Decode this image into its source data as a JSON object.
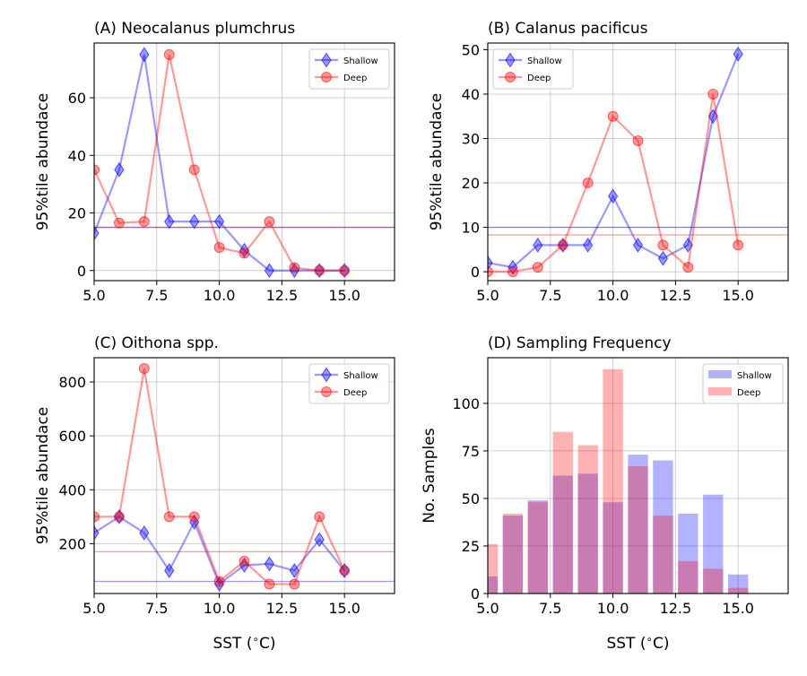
{
  "colors": {
    "shallow": "#0000ff",
    "deep": "#ff0000",
    "grid": "#b0b0b0"
  },
  "chart_data": [
    {
      "type": "line",
      "title": "(A) Neocalanus plumchrus",
      "xlabel": "",
      "ylabel": "95%tile abundace",
      "xlim": [
        5,
        17
      ],
      "ylim": [
        -3.5,
        79
      ],
      "x_ticks": [
        "5.0",
        "7.5",
        "10.0",
        "12.5",
        "15.0"
      ],
      "y_ticks": [
        "0",
        "20",
        "40",
        "60"
      ],
      "y_tick_values": [
        0,
        20,
        40,
        60
      ],
      "legend_position": "upper right",
      "grid": true,
      "series": [
        {
          "name": "Shallow",
          "x": [
            5,
            6,
            7,
            8,
            9,
            10,
            11,
            12,
            13,
            14,
            15
          ],
          "y": [
            13,
            35,
            75,
            17,
            17,
            17,
            7,
            0,
            0,
            0,
            0
          ],
          "hline": 15
        },
        {
          "name": "Deep",
          "x": [
            5,
            6,
            7,
            8,
            9,
            10,
            11,
            12,
            13,
            14,
            15
          ],
          "y": [
            35,
            16.5,
            17,
            75,
            35,
            8,
            6,
            17,
            1,
            0,
            0
          ],
          "hline": 15
        }
      ]
    },
    {
      "type": "line",
      "title": "(B) Calanus pacificus",
      "xlabel": "",
      "ylabel": "95%tile abundace",
      "xlim": [
        5,
        17
      ],
      "ylim": [
        -2,
        51.5
      ],
      "x_ticks": [
        "5.0",
        "7.5",
        "10.0",
        "12.5",
        "15.0"
      ],
      "y_ticks": [
        "0",
        "10",
        "20",
        "30",
        "40",
        "50"
      ],
      "y_tick_values": [
        0,
        10,
        20,
        30,
        40,
        50
      ],
      "legend_position": "upper left",
      "grid": true,
      "series": [
        {
          "name": "Shallow",
          "x": [
            5,
            6,
            7,
            8,
            9,
            10,
            11,
            12,
            13,
            14,
            15
          ],
          "y": [
            2,
            1,
            6,
            6,
            6,
            17,
            6,
            3,
            6,
            35,
            49
          ],
          "hline": 10
        },
        {
          "name": "Deep",
          "x": [
            5,
            6,
            7,
            8,
            9,
            10,
            11,
            12,
            13,
            14,
            15
          ],
          "y": [
            0,
            0,
            1,
            6,
            20,
            35,
            29.5,
            6,
            1,
            40,
            6
          ],
          "hline": 8.3
        }
      ]
    },
    {
      "type": "line",
      "title": "(C) Oithona spp.",
      "xlabel": "SST ($^\\circ$C)",
      "ylabel": "95%tile abundace",
      "xlim": [
        5,
        17
      ],
      "ylim": [
        15,
        890
      ],
      "x_ticks": [
        "5.0",
        "7.5",
        "10.0",
        "12.5",
        "15.0"
      ],
      "y_ticks": [
        "200",
        "400",
        "600",
        "800"
      ],
      "y_tick_values": [
        200,
        400,
        600,
        800
      ],
      "legend_position": "upper right",
      "grid": true,
      "series": [
        {
          "name": "Shallow",
          "x": [
            5,
            6,
            7,
            8,
            9,
            10,
            11,
            12,
            13,
            14,
            15
          ],
          "y": [
            240,
            300,
            240,
            100,
            280,
            50,
            120,
            125,
            100,
            215,
            100
          ],
          "hline": 60
        },
        {
          "name": "Deep",
          "x": [
            5,
            6,
            7,
            8,
            9,
            10,
            11,
            12,
            13,
            14,
            15
          ],
          "y": [
            300,
            300,
            850,
            300,
            300,
            60,
            135,
            50,
            50,
            300,
            100
          ],
          "hline": 170
        }
      ]
    },
    {
      "type": "bar",
      "title": "(D) Sampling Frequency",
      "xlabel": "SST ($^\\circ$C)",
      "ylabel": "No. Samples",
      "xlim": [
        5,
        17
      ],
      "ylim": [
        0,
        124
      ],
      "x_ticks": [
        "5.0",
        "7.5",
        "10.0",
        "12.5",
        "15.0"
      ],
      "y_ticks": [
        "0",
        "25",
        "50",
        "75",
        "100"
      ],
      "y_tick_values": [
        0,
        25,
        50,
        75,
        100
      ],
      "legend_position": "upper right",
      "grid": true,
      "bar_centers": [
        5,
        6,
        7,
        8,
        9,
        10,
        11,
        12,
        13,
        14,
        15
      ],
      "series": [
        {
          "name": "Shallow",
          "values": [
            9,
            41,
            49,
            62,
            63,
            48,
            73,
            70,
            42,
            52,
            10
          ]
        },
        {
          "name": "Deep",
          "values": [
            26,
            42,
            48,
            85,
            78,
            118,
            67,
            41,
            17,
            13,
            3
          ]
        }
      ]
    }
  ]
}
